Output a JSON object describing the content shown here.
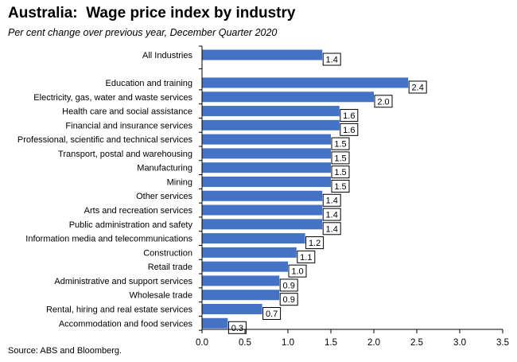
{
  "header": {
    "title": "Australia:  Wage price index by industry",
    "subtitle": "Per cent change over previous year, December Quarter 2020"
  },
  "footer": {
    "source": "Source: ABS and Bloomberg."
  },
  "colors": {
    "bar": "#4472c4",
    "axis": "#000000",
    "label_box_border": "#000000"
  },
  "chart_data": {
    "type": "bar",
    "orientation": "horizontal",
    "title": "Australia:  Wage price index by industry",
    "subtitle": "Per cent change over previous year, December Quarter 2020",
    "xlabel": "",
    "ylabel": "",
    "xlim": [
      0,
      3.5
    ],
    "x_ticks": [
      "0.0",
      "0.5",
      "1.0",
      "1.5",
      "2.0",
      "2.5",
      "3.0",
      "3.5"
    ],
    "grid": false,
    "legend": "none",
    "categories": [
      "All Industries",
      "Education and training",
      "Electricity, gas, water and waste services",
      "Health care and social assistance",
      "Financial and insurance services",
      "Professional, scientific and technical services",
      "Transport, postal and warehousing",
      "Manufacturing",
      "Mining",
      "Other services",
      "Arts and recreation services",
      "Public administration and safety",
      "Information media and telecommunications",
      "Construction",
      "Retail trade",
      "Administrative and support services",
      "Wholesale trade",
      "Rental, hiring and real estate services",
      "Accommodation and food services"
    ],
    "values": [
      1.4,
      2.4,
      2.0,
      1.6,
      1.6,
      1.5,
      1.5,
      1.5,
      1.5,
      1.4,
      1.4,
      1.4,
      1.2,
      1.1,
      1.0,
      0.9,
      0.9,
      0.7,
      0.3
    ],
    "data_labels": [
      "1.4",
      "2.4",
      "2.0",
      "1.6",
      "1.6",
      "1.5",
      "1.5",
      "1.5",
      "1.5",
      "1.4",
      "1.4",
      "1.4",
      "1.2",
      "1.1",
      "1.0",
      "0.9",
      "0.9",
      "0.7",
      "0.3"
    ]
  }
}
